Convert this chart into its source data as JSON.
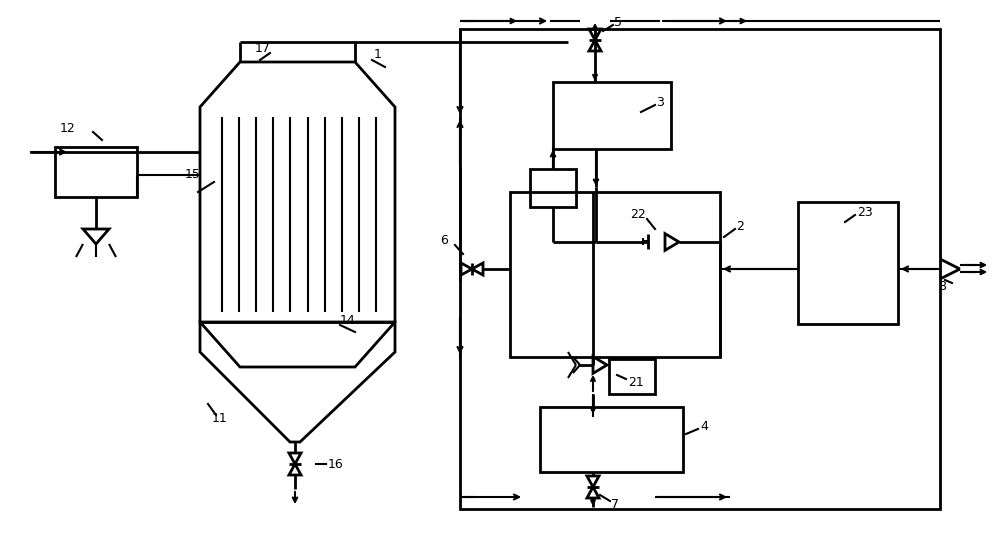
{
  "bg": "#ffffff",
  "lw": 1.5,
  "lw2": 2.0,
  "lw3": 2.5
}
